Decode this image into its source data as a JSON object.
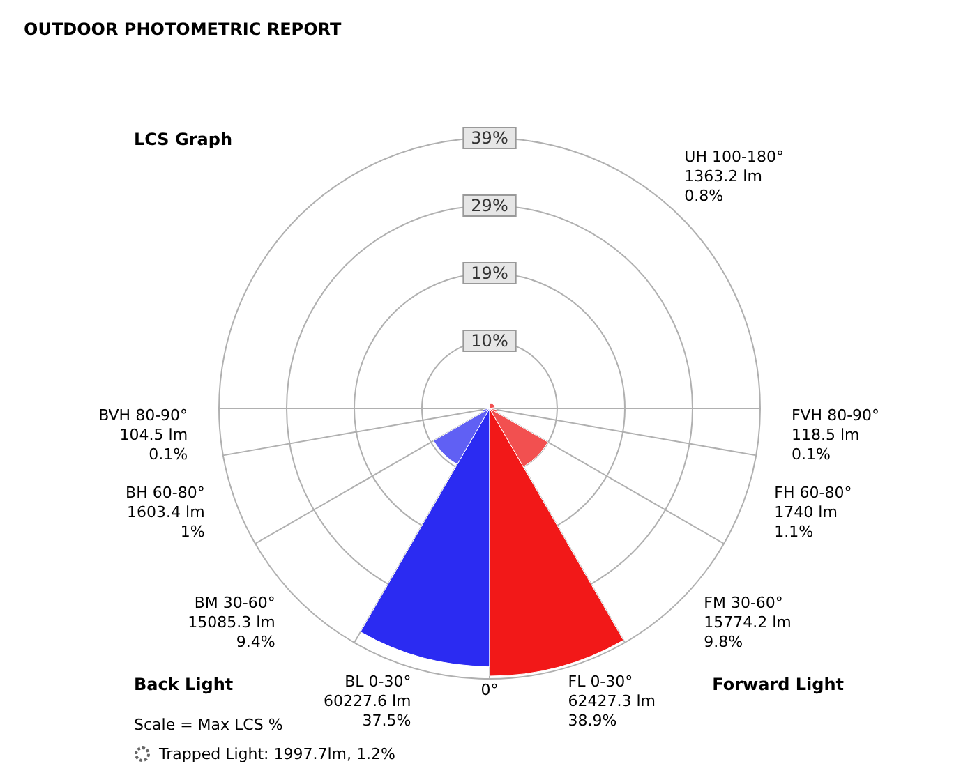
{
  "chart_data": {
    "type": "other",
    "title": "OUTDOOR PHOTOMETRIC REPORT",
    "subtitle": "LCS Graph",
    "categories": [
      "BL 0-30°",
      "BM 30-60°",
      "BH 60-80°",
      "BVH 80-90°",
      "FL 0-30°",
      "FM 30-60°",
      "FH 60-80°",
      "FVH 80-90°",
      "UH 100-180°"
    ],
    "values": [
      37.5,
      9.4,
      1,
      0.1,
      38.9,
      9.8,
      1.1,
      0.1,
      0.8
    ],
    "value_labels": [
      "60227.6 lm\n37.5%",
      "15085.3 lm\n9.4%",
      "1603.4 lm\n1%",
      "104.5 lm\n0.1%",
      "62427.3 lm\n38.9%",
      "15774.2 lm\n9.8%",
      "1740 lm\n1.1%",
      "118.5 lm\n0.1%",
      "1363.2 lm\n0.8%"
    ],
    "colors": [
      "#2b2bf2",
      "#6060f4",
      "#6060f4",
      "#6060f4",
      "#f21818",
      "#f25050",
      "#f25050",
      "#f25050",
      "#f25050"
    ],
    "annotations": [
      "Back Light",
      "Forward Light",
      "0°",
      "Scale = Max LCS %",
      "Trapped Light: 1997.7lm, 1.2%",
      "10%",
      "19%",
      "29%",
      "39%"
    ]
  }
}
